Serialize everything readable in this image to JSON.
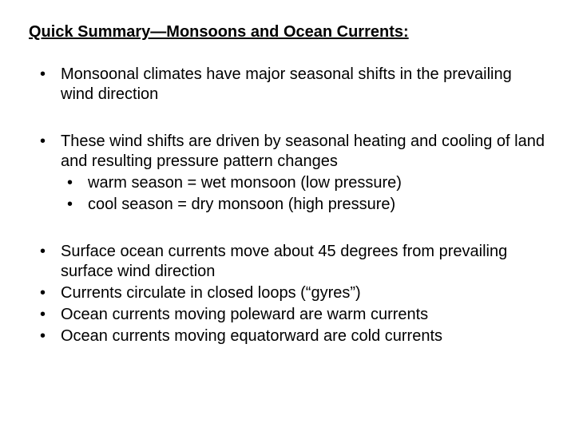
{
  "title": "Quick Summary—Monsoons and Ocean Currents:",
  "blocks": [
    {
      "items": [
        {
          "text": "Monsoonal climates have major seasonal shifts in the prevailing wind direction"
        }
      ]
    },
    {
      "items": [
        {
          "text": "These wind shifts are driven by seasonal heating and cooling of land and resulting pressure pattern changes",
          "sub": [
            "warm season = wet monsoon (low pressure)",
            "cool season = dry monsoon (high pressure)"
          ]
        }
      ]
    },
    {
      "items": [
        {
          "text": "Surface ocean currents move about 45 degrees from prevailing surface wind direction"
        },
        {
          "text": "Currents circulate in closed loops (“gyres”)"
        },
        {
          "text": "Ocean currents moving poleward are warm currents"
        },
        {
          "text": "Ocean currents moving equatorward are cold currents"
        }
      ]
    }
  ],
  "style": {
    "background_color": "#ffffff",
    "text_color": "#000000",
    "font_family": "Arial",
    "title_fontsize": 20,
    "body_fontsize": 20,
    "bullet_char": "•"
  }
}
